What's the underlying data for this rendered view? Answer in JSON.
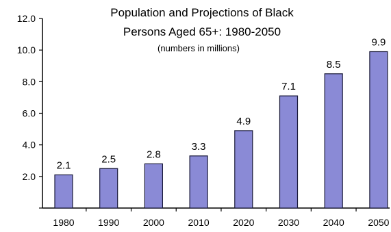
{
  "chart_data": {
    "type": "bar",
    "title_lines": [
      "Population and Projections of Black",
      "Persons Aged 65+: 1980-2050"
    ],
    "subtitle": "(numbers in millions)",
    "categories": [
      "1980",
      "1990",
      "2000",
      "2010",
      "2020",
      "2030",
      "2040",
      "2050"
    ],
    "values": [
      2.1,
      2.5,
      2.8,
      3.3,
      4.9,
      7.1,
      8.5,
      9.9
    ],
    "value_labels": [
      "2.1",
      "2.5",
      "2.8",
      "3.3",
      "4.9",
      "7.1",
      "8.5",
      "9.9"
    ],
    "ylim": [
      0,
      12
    ],
    "yticks": [
      0,
      2,
      4,
      6,
      8,
      10,
      12
    ],
    "ytick_labels": [
      "",
      "2.0",
      "4.0",
      "6.0",
      "8.0",
      "10.0",
      "12.0"
    ],
    "xlabel": "",
    "ylabel": "",
    "grid": false,
    "legend": "none",
    "bar_color": "#8a8ad6",
    "bar_edge_color": "#1a1a3a"
  }
}
